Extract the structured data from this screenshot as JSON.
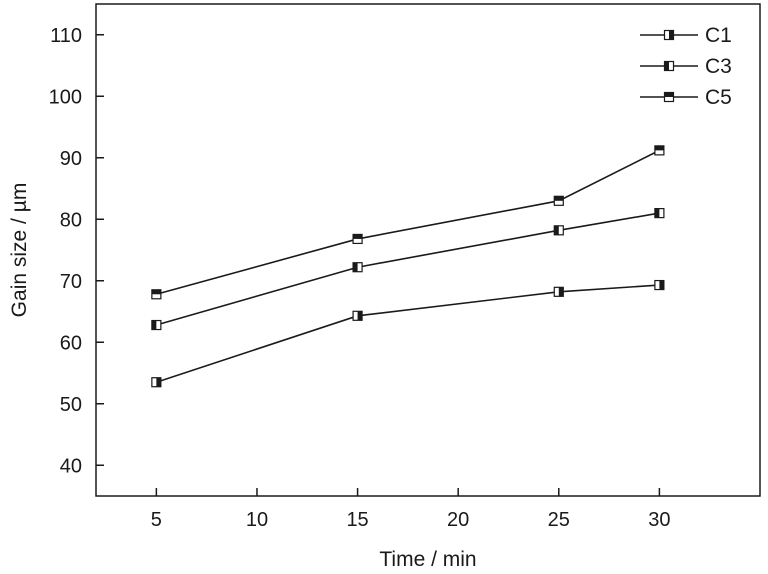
{
  "chart_data": {
    "type": "line",
    "title": "",
    "xlabel": "Time / min",
    "ylabel": "Gain size / µm",
    "x": [
      5,
      15,
      25,
      30
    ],
    "xlim": [
      2,
      35
    ],
    "ylim": [
      35,
      115
    ],
    "xticks": [
      5,
      10,
      15,
      20,
      25,
      30
    ],
    "yticks": [
      40,
      50,
      60,
      70,
      80,
      90,
      100,
      110
    ],
    "grid": false,
    "legend_position": "top-right",
    "series": [
      {
        "name": "C1",
        "marker": "half-right",
        "values": [
          53.5,
          64.3,
          68.2,
          69.3
        ]
      },
      {
        "name": "C3",
        "marker": "half-left",
        "values": [
          62.8,
          72.2,
          78.2,
          81.0
        ]
      },
      {
        "name": "C5",
        "marker": "half-top",
        "values": [
          67.8,
          76.8,
          83.0,
          91.2
        ]
      }
    ],
    "colors": {
      "line": "#1a1a1a",
      "marker_fill": "#1a1a1a",
      "marker_bg": "#ffffff"
    }
  }
}
